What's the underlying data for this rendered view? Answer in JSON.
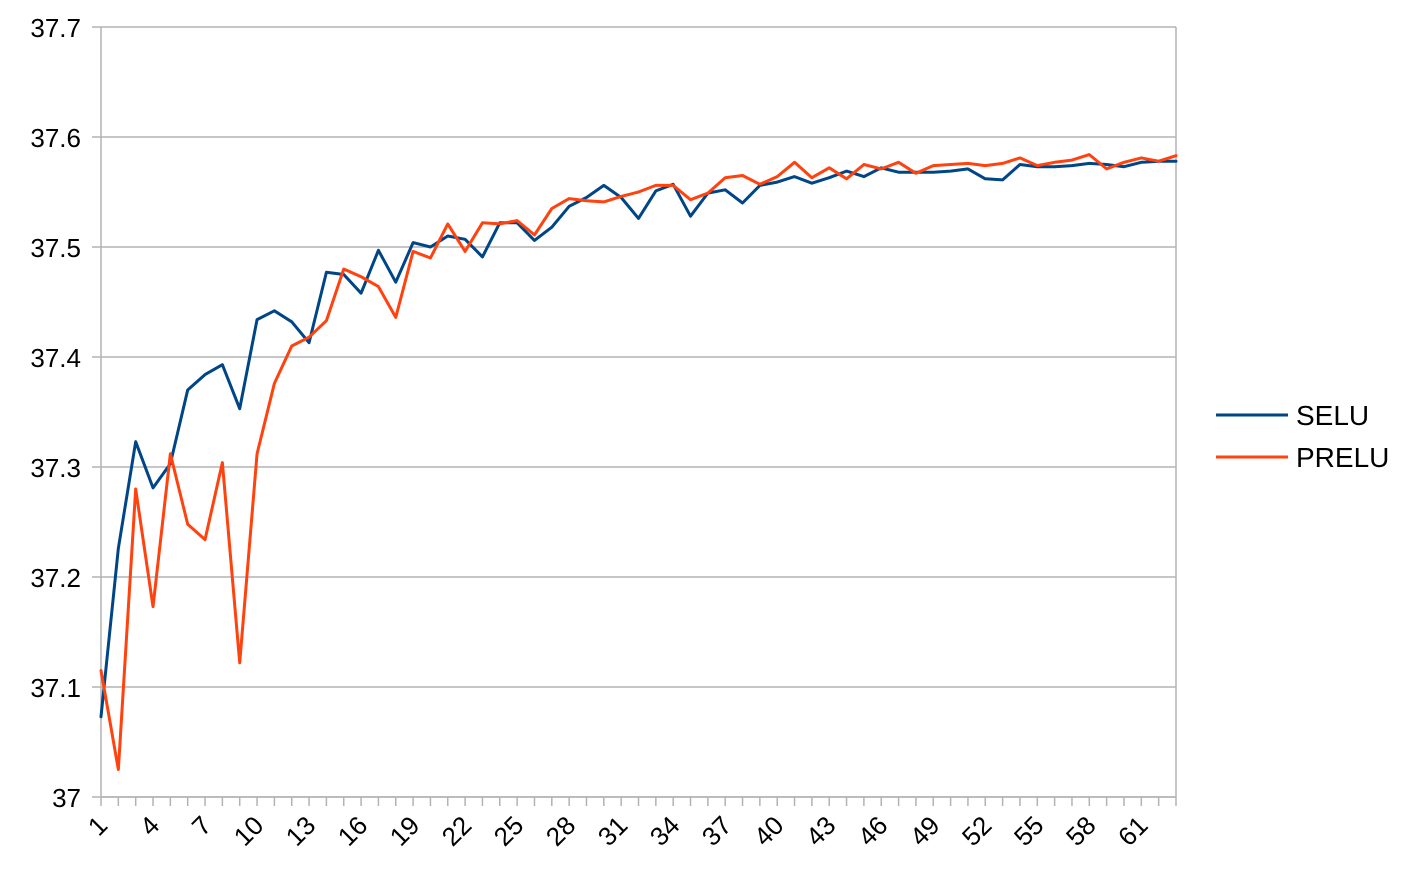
{
  "chart_data": {
    "type": "line",
    "title": "",
    "xlabel": "",
    "ylabel": "",
    "x": [
      1,
      2,
      3,
      4,
      5,
      6,
      7,
      8,
      9,
      10,
      11,
      12,
      13,
      14,
      15,
      16,
      17,
      18,
      19,
      20,
      21,
      22,
      23,
      24,
      25,
      26,
      27,
      28,
      29,
      30,
      31,
      32,
      33,
      34,
      35,
      36,
      37,
      38,
      39,
      40,
      41,
      42,
      43,
      44,
      45,
      46,
      47,
      48,
      49,
      50,
      51,
      52,
      53,
      54,
      55,
      56,
      57,
      58,
      59,
      60,
      61,
      62,
      63
    ],
    "x_tick_labels": [
      "1",
      "4",
      "7",
      "10",
      "13",
      "16",
      "19",
      "22",
      "25",
      "28",
      "31",
      "34",
      "37",
      "40",
      "43",
      "46",
      "49",
      "52",
      "55",
      "58",
      "61"
    ],
    "ylim": [
      37,
      37.7
    ],
    "y_ticks": [
      "37",
      "37.1",
      "37.2",
      "37.3",
      "37.4",
      "37.5",
      "37.6",
      "37.7"
    ],
    "y_tick_values": [
      37,
      37.1,
      37.2,
      37.3,
      37.4,
      37.5,
      37.6,
      37.7
    ],
    "grid": true,
    "legend_position": "right",
    "series": [
      {
        "name": "SELU",
        "color": "#004586",
        "values": [
          37.073,
          37.226,
          37.323,
          37.281,
          37.303,
          37.37,
          37.384,
          37.393,
          37.353,
          37.434,
          37.442,
          37.432,
          37.413,
          37.477,
          37.475,
          37.458,
          37.497,
          37.468,
          37.504,
          37.5,
          37.51,
          37.507,
          37.491,
          37.522,
          37.522,
          37.506,
          37.518,
          37.537,
          37.545,
          37.556,
          37.545,
          37.526,
          37.551,
          37.557,
          37.528,
          37.549,
          37.552,
          37.54,
          37.556,
          37.559,
          37.564,
          37.558,
          37.563,
          37.569,
          37.564,
          37.572,
          37.568,
          37.568,
          37.568,
          37.569,
          37.571,
          37.562,
          37.561,
          37.575,
          37.573,
          37.573,
          37.574,
          37.576,
          37.575,
          37.573,
          37.577,
          37.578,
          37.578
        ]
      },
      {
        "name": "PRELU",
        "color": "#ff420e",
        "values": [
          37.115,
          37.025,
          37.28,
          37.173,
          37.312,
          37.248,
          37.234,
          37.304,
          37.122,
          37.312,
          37.376,
          37.41,
          37.418,
          37.433,
          37.48,
          37.473,
          37.464,
          37.436,
          37.496,
          37.49,
          37.521,
          37.496,
          37.522,
          37.521,
          37.524,
          37.511,
          37.535,
          37.544,
          37.542,
          37.541,
          37.546,
          37.55,
          37.556,
          37.556,
          37.543,
          37.549,
          37.563,
          37.565,
          37.557,
          37.564,
          37.577,
          37.563,
          37.572,
          37.562,
          37.575,
          37.571,
          37.577,
          37.567,
          37.574,
          37.575,
          37.576,
          37.574,
          37.576,
          37.581,
          37.574,
          37.577,
          37.579,
          37.584,
          37.571,
          37.577,
          37.581,
          37.578,
          37.583
        ]
      }
    ]
  }
}
